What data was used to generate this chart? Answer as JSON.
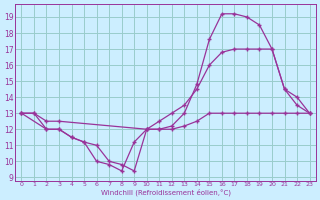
{
  "bg_color": "#cceeff",
  "grid_color": "#99cccc",
  "line_color": "#993399",
  "line1": {
    "x": [
      0,
      1,
      2,
      3,
      4,
      5,
      6,
      7,
      8,
      9,
      10,
      11,
      12,
      13,
      14,
      15,
      16,
      17,
      18,
      19,
      20,
      21,
      22,
      23
    ],
    "y": [
      13,
      13,
      12,
      12,
      11.5,
      11.2,
      10.0,
      9.8,
      9.4,
      11.2,
      12.0,
      12.0,
      12.0,
      12.2,
      12.5,
      13.0,
      13.0,
      13.0,
      13.0,
      13.0,
      13.0,
      13.0,
      13.0,
      13.0
    ]
  },
  "line2": {
    "x": [
      0,
      2,
      3,
      4,
      5,
      6,
      7,
      8,
      9,
      10,
      11,
      12,
      13,
      14,
      15,
      16,
      17,
      18,
      19,
      20,
      21,
      22,
      23
    ],
    "y": [
      13,
      12,
      12,
      11.5,
      11.2,
      11.0,
      10.0,
      9.8,
      9.4,
      12.0,
      12.0,
      12.2,
      13.0,
      14.8,
      17.6,
      19.2,
      19.2,
      19.0,
      18.5,
      17.0,
      14.5,
      14.0,
      13.0
    ]
  },
  "line3": {
    "x": [
      0,
      1,
      2,
      3,
      10,
      11,
      12,
      13,
      14,
      15,
      16,
      17,
      18,
      19,
      20,
      21,
      22,
      23
    ],
    "y": [
      13,
      13,
      12.5,
      12.5,
      12.0,
      12.5,
      13.0,
      13.5,
      14.5,
      16.0,
      16.8,
      17.0,
      17.0,
      17.0,
      17.0,
      14.5,
      13.5,
      13.0
    ]
  },
  "xlim": [
    -0.5,
    23.5
  ],
  "ylim": [
    8.8,
    19.8
  ],
  "yticks": [
    9,
    10,
    11,
    12,
    13,
    14,
    15,
    16,
    17,
    18,
    19
  ],
  "xticks": [
    0,
    1,
    2,
    3,
    4,
    5,
    6,
    7,
    8,
    9,
    10,
    11,
    12,
    13,
    14,
    15,
    16,
    17,
    18,
    19,
    20,
    21,
    22,
    23
  ],
  "xlabel": "Windchill (Refroidissement éolien,°C)",
  "marker": "+"
}
